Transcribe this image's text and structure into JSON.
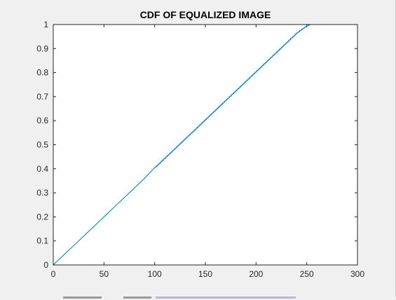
{
  "chart_data": {
    "type": "line",
    "title": "CDF OF EQUALIZED IMAGE",
    "xlabel": "",
    "ylabel": "",
    "xlim": [
      0,
      300
    ],
    "ylim": [
      0,
      1
    ],
    "xticks": [
      0,
      50,
      100,
      150,
      200,
      250,
      300
    ],
    "yticks": [
      0,
      0.1,
      0.2,
      0.3,
      0.4,
      0.5,
      0.6,
      0.7,
      0.8,
      0.9,
      1
    ],
    "xtick_labels": [
      "0",
      "50",
      "100",
      "150",
      "200",
      "250",
      "300"
    ],
    "ytick_labels": [
      "0",
      "0.1",
      "0.2",
      "0.3",
      "0.4",
      "0.5",
      "0.6",
      "0.7",
      "0.8",
      "0.9",
      "1"
    ],
    "grid": false,
    "series": [
      {
        "color": "#0072bd",
        "x": [
          0,
          10,
          20,
          30,
          40,
          50,
          60,
          70,
          80,
          90,
          100,
          105,
          110,
          115,
          120,
          125,
          130,
          135,
          140,
          145,
          150,
          155,
          160,
          165,
          170,
          175,
          180,
          185,
          190,
          195,
          200,
          205,
          210,
          215,
          220,
          225,
          230,
          235,
          240,
          245,
          250,
          253
        ],
        "y": [
          0,
          0.04,
          0.08,
          0.12,
          0.16,
          0.2,
          0.24,
          0.28,
          0.32,
          0.36,
          0.405,
          0.425,
          0.445,
          0.465,
          0.485,
          0.505,
          0.525,
          0.545,
          0.565,
          0.585,
          0.605,
          0.625,
          0.645,
          0.665,
          0.685,
          0.705,
          0.725,
          0.745,
          0.765,
          0.785,
          0.805,
          0.825,
          0.845,
          0.865,
          0.885,
          0.905,
          0.925,
          0.945,
          0.965,
          0.98,
          0.995,
          1
        ]
      }
    ]
  }
}
